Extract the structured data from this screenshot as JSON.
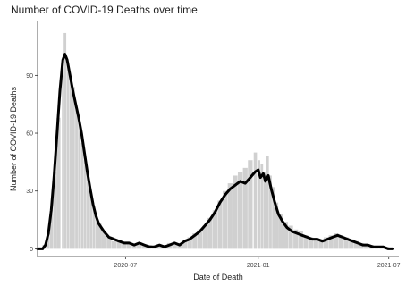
{
  "chart_data": {
    "type": "bar",
    "title": "Number of COVID-19 Deaths over time",
    "xlabel": "Date of Death",
    "ylabel": "Number of COVID-19 Deaths",
    "x_range": [
      "2020-03-01",
      "2021-07-15"
    ],
    "ylim": [
      -4,
      118
    ],
    "y_ticks": [
      0,
      30,
      60,
      90
    ],
    "x_ticks": [
      {
        "date": "2020-07-01",
        "label": "2020-07"
      },
      {
        "date": "2021-01-01",
        "label": "2021-01"
      },
      {
        "date": "2021-07-01",
        "label": "2021-07"
      }
    ],
    "grid": false,
    "series": [
      {
        "type": "bar",
        "color": "#d0d0d0",
        "values": [
          [
            "2020-03-05",
            0
          ],
          [
            "2020-03-10",
            2
          ],
          [
            "2020-03-15",
            6
          ],
          [
            "2020-03-20",
            18
          ],
          [
            "2020-03-25",
            40
          ],
          [
            "2020-03-30",
            68
          ],
          [
            "2020-04-05",
            90
          ],
          [
            "2020-04-08",
            112
          ],
          [
            "2020-04-12",
            97
          ],
          [
            "2020-04-16",
            88
          ],
          [
            "2020-04-20",
            84
          ],
          [
            "2020-04-24",
            72
          ],
          [
            "2020-04-28",
            66
          ],
          [
            "2020-05-02",
            55
          ],
          [
            "2020-05-06",
            46
          ],
          [
            "2020-05-10",
            38
          ],
          [
            "2020-05-14",
            28
          ],
          [
            "2020-05-18",
            22
          ],
          [
            "2020-05-22",
            17
          ],
          [
            "2020-05-26",
            13
          ],
          [
            "2020-06-01",
            9
          ],
          [
            "2020-06-08",
            6
          ],
          [
            "2020-06-15",
            4
          ],
          [
            "2020-06-22",
            4
          ],
          [
            "2020-06-29",
            3
          ],
          [
            "2020-07-06",
            3
          ],
          [
            "2020-07-13",
            2
          ],
          [
            "2020-07-20",
            3
          ],
          [
            "2020-07-27",
            2
          ],
          [
            "2020-08-03",
            2
          ],
          [
            "2020-08-10",
            1
          ],
          [
            "2020-08-17",
            2
          ],
          [
            "2020-08-24",
            2
          ],
          [
            "2020-08-31",
            3
          ],
          [
            "2020-09-07",
            2
          ],
          [
            "2020-09-14",
            3
          ],
          [
            "2020-09-21",
            4
          ],
          [
            "2020-09-28",
            6
          ],
          [
            "2020-10-05",
            8
          ],
          [
            "2020-10-12",
            10
          ],
          [
            "2020-10-19",
            12
          ],
          [
            "2020-10-26",
            16
          ],
          [
            "2020-11-02",
            20
          ],
          [
            "2020-11-09",
            25
          ],
          [
            "2020-11-16",
            30
          ],
          [
            "2020-11-23",
            34
          ],
          [
            "2020-11-30",
            38
          ],
          [
            "2020-12-07",
            40
          ],
          [
            "2020-12-14",
            42
          ],
          [
            "2020-12-21",
            46
          ],
          [
            "2020-12-28",
            50
          ],
          [
            "2021-01-02",
            46
          ],
          [
            "2021-01-06",
            44
          ],
          [
            "2021-01-10",
            40
          ],
          [
            "2021-01-14",
            48
          ],
          [
            "2021-01-18",
            38
          ],
          [
            "2021-01-22",
            32
          ],
          [
            "2021-01-26",
            24
          ],
          [
            "2021-02-01",
            18
          ],
          [
            "2021-02-08",
            14
          ],
          [
            "2021-02-15",
            12
          ],
          [
            "2021-02-22",
            10
          ],
          [
            "2021-03-01",
            9
          ],
          [
            "2021-03-08",
            7
          ],
          [
            "2021-03-15",
            6
          ],
          [
            "2021-03-22",
            5
          ],
          [
            "2021-03-29",
            5
          ],
          [
            "2021-04-05",
            6
          ],
          [
            "2021-04-12",
            7
          ],
          [
            "2021-04-19",
            8
          ],
          [
            "2021-04-26",
            7
          ],
          [
            "2021-05-03",
            6
          ],
          [
            "2021-05-10",
            5
          ],
          [
            "2021-05-17",
            4
          ],
          [
            "2021-05-24",
            3
          ],
          [
            "2021-05-31",
            2
          ],
          [
            "2021-06-07",
            2
          ],
          [
            "2021-06-14",
            1
          ],
          [
            "2021-06-21",
            1
          ],
          [
            "2021-06-28",
            1
          ],
          [
            "2021-07-05",
            0
          ]
        ]
      },
      {
        "type": "line",
        "color": "#000000",
        "values": [
          [
            "2020-03-01",
            0
          ],
          [
            "2020-03-08",
            0
          ],
          [
            "2020-03-12",
            2
          ],
          [
            "2020-03-16",
            8
          ],
          [
            "2020-03-20",
            20
          ],
          [
            "2020-03-24",
            38
          ],
          [
            "2020-03-28",
            60
          ],
          [
            "2020-04-01",
            82
          ],
          [
            "2020-04-05",
            98
          ],
          [
            "2020-04-08",
            101
          ],
          [
            "2020-04-11",
            98
          ],
          [
            "2020-04-15",
            90
          ],
          [
            "2020-04-19",
            82
          ],
          [
            "2020-04-23",
            75
          ],
          [
            "2020-04-27",
            68
          ],
          [
            "2020-05-01",
            60
          ],
          [
            "2020-05-05",
            50
          ],
          [
            "2020-05-09",
            40
          ],
          [
            "2020-05-13",
            31
          ],
          [
            "2020-05-17",
            23
          ],
          [
            "2020-05-21",
            17
          ],
          [
            "2020-05-25",
            13
          ],
          [
            "2020-06-01",
            9
          ],
          [
            "2020-06-08",
            6
          ],
          [
            "2020-06-15",
            5
          ],
          [
            "2020-06-22",
            4
          ],
          [
            "2020-06-29",
            3
          ],
          [
            "2020-07-06",
            3
          ],
          [
            "2020-07-13",
            2
          ],
          [
            "2020-07-20",
            3
          ],
          [
            "2020-07-27",
            2
          ],
          [
            "2020-08-03",
            1
          ],
          [
            "2020-08-10",
            1
          ],
          [
            "2020-08-17",
            2
          ],
          [
            "2020-08-24",
            1
          ],
          [
            "2020-08-31",
            2
          ],
          [
            "2020-09-07",
            3
          ],
          [
            "2020-09-14",
            2
          ],
          [
            "2020-09-21",
            4
          ],
          [
            "2020-09-28",
            5
          ],
          [
            "2020-10-05",
            7
          ],
          [
            "2020-10-12",
            9
          ],
          [
            "2020-10-19",
            12
          ],
          [
            "2020-10-26",
            15
          ],
          [
            "2020-11-02",
            19
          ],
          [
            "2020-11-09",
            24
          ],
          [
            "2020-11-16",
            28
          ],
          [
            "2020-11-23",
            31
          ],
          [
            "2020-11-30",
            33
          ],
          [
            "2020-12-07",
            35
          ],
          [
            "2020-12-14",
            34
          ],
          [
            "2020-12-21",
            37
          ],
          [
            "2020-12-28",
            40
          ],
          [
            "2021-01-01",
            41
          ],
          [
            "2021-01-04",
            37
          ],
          [
            "2021-01-08",
            39
          ],
          [
            "2021-01-11",
            35
          ],
          [
            "2021-01-15",
            38
          ],
          [
            "2021-01-19",
            31
          ],
          [
            "2021-01-24",
            24
          ],
          [
            "2021-01-29",
            18
          ],
          [
            "2021-02-04",
            14
          ],
          [
            "2021-02-10",
            11
          ],
          [
            "2021-02-17",
            9
          ],
          [
            "2021-02-24",
            8
          ],
          [
            "2021-03-03",
            7
          ],
          [
            "2021-03-10",
            6
          ],
          [
            "2021-03-17",
            5
          ],
          [
            "2021-03-24",
            5
          ],
          [
            "2021-03-31",
            4
          ],
          [
            "2021-04-07",
            5
          ],
          [
            "2021-04-14",
            6
          ],
          [
            "2021-04-21",
            7
          ],
          [
            "2021-04-28",
            6
          ],
          [
            "2021-05-05",
            5
          ],
          [
            "2021-05-12",
            4
          ],
          [
            "2021-05-19",
            3
          ],
          [
            "2021-05-26",
            2
          ],
          [
            "2021-06-02",
            2
          ],
          [
            "2021-06-09",
            1
          ],
          [
            "2021-06-16",
            1
          ],
          [
            "2021-06-23",
            1
          ],
          [
            "2021-06-30",
            0
          ],
          [
            "2021-07-07",
            0
          ]
        ]
      }
    ]
  }
}
